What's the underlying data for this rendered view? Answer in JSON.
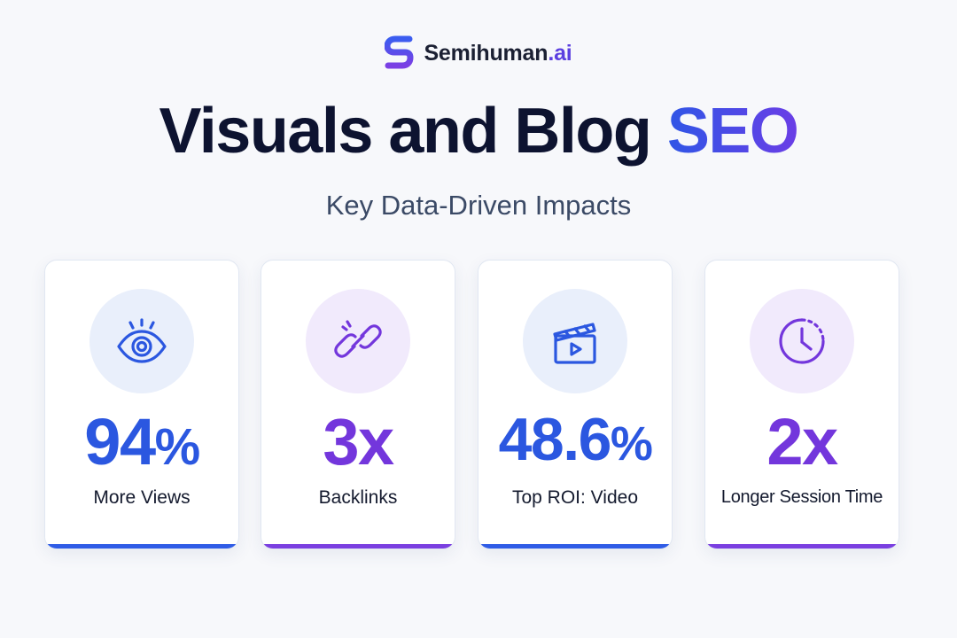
{
  "brand": {
    "name": "Semihuman",
    "suffix": ".ai",
    "logo_icon": "s-logo-icon",
    "colors": {
      "logo_top": "#3b5df0",
      "logo_bottom": "#7b3fe4"
    }
  },
  "header": {
    "title_main": "Visuals and Blog ",
    "title_accent": "SEO",
    "subtitle": "Key Data-Driven Impacts"
  },
  "colors": {
    "blue": "#2b57e0",
    "purple": "#7336dc",
    "title": "#0d1330"
  },
  "cards": [
    {
      "icon": "eye-icon",
      "value": "94",
      "unit": "%",
      "label": "More Views",
      "accent": "blue"
    },
    {
      "icon": "link-icon",
      "value": "3x",
      "unit": "",
      "label": "Backlinks",
      "accent": "purple"
    },
    {
      "icon": "clapperboard-icon",
      "value": "48.6",
      "unit": "%",
      "label": "Top ROI: Video",
      "accent": "blue"
    },
    {
      "icon": "clock-icon",
      "value": "2x",
      "unit": "",
      "label": "Longer Session Time",
      "accent": "purple"
    }
  ]
}
